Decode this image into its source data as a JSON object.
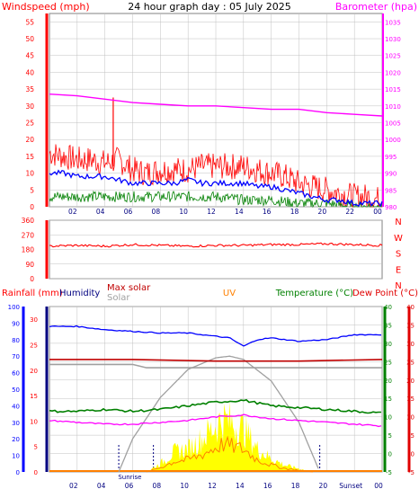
{
  "title": "24 hour graph day : 05 July 2025",
  "colors": {
    "wind": "#ff0000",
    "gust": "#ff0000",
    "avgwind": "#0000ff",
    "green": "#008000",
    "baro": "#ff00ff",
    "dir": "#ff0000",
    "grid": "#c0c0c0",
    "rain": "#0000ff",
    "humidity": "#000080",
    "maxsolar": "#c00000",
    "solar": "#a0a0a0",
    "uv": "#ff8000",
    "temp": "#008000",
    "dew": "#e00000",
    "yellow": "#ffff00"
  },
  "chart_data": [
    {
      "type": "line",
      "title": "",
      "left_label": "Windspeed (mph)",
      "right_label": "Barometer (hpa)",
      "x_ticks": [
        "02",
        "04",
        "06",
        "08",
        "10",
        "12",
        "14",
        "16",
        "18",
        "20",
        "22",
        "00"
      ],
      "y_left_ticks": [
        "0",
        "5",
        "10",
        "15",
        "20",
        "25",
        "30",
        "35",
        "40",
        "45",
        "50",
        "55"
      ],
      "y_right_ticks": [
        "980",
        "985",
        "990",
        "995",
        "1000",
        "1005",
        "1010",
        "1015",
        "1020",
        "1025",
        "1030",
        "1035"
      ],
      "ylim_left": [
        0,
        57.5
      ],
      "ylim_right": [
        980,
        1037.5
      ],
      "series": [
        {
          "role": "gust",
          "hours": [
            0,
            1,
            2,
            3,
            4,
            5,
            6,
            7,
            8,
            9,
            10,
            11,
            12,
            13,
            14,
            15,
            16,
            17,
            18,
            19,
            20,
            21,
            22,
            23,
            24
          ],
          "values": [
            16,
            15,
            14,
            14,
            13,
            14,
            11,
            10,
            11,
            11,
            11,
            12,
            12,
            12,
            12,
            11,
            10,
            9,
            7,
            6,
            5,
            4,
            3,
            3,
            2
          ]
        },
        {
          "role": "average",
          "hours": [
            0,
            1,
            2,
            3,
            4,
            5,
            6,
            7,
            8,
            9,
            10,
            11,
            12,
            13,
            14,
            15,
            16,
            17,
            18,
            19,
            20,
            21,
            22,
            23,
            24
          ],
          "values": [
            10,
            10,
            9,
            9,
            9,
            8,
            7,
            7,
            7,
            7,
            8,
            7,
            7,
            7,
            7,
            6,
            6,
            5,
            4,
            3,
            2,
            2,
            1,
            1,
            1
          ]
        },
        {
          "role": "green",
          "hours": [
            0,
            2,
            4,
            6,
            8,
            10,
            12,
            14,
            16,
            18,
            20,
            22,
            24
          ],
          "values": [
            3,
            3,
            3,
            3,
            3,
            3,
            3,
            2,
            2,
            1,
            1,
            0,
            0
          ]
        },
        {
          "role": "barometer",
          "hours": [
            0,
            2,
            4,
            6,
            8,
            10,
            12,
            14,
            16,
            18,
            20,
            22,
            24
          ],
          "values": [
            1013.5,
            1013,
            1012,
            1011,
            1010.5,
            1010,
            1010,
            1009.5,
            1009,
            1009,
            1008,
            1007.5,
            1007
          ]
        }
      ]
    },
    {
      "type": "line",
      "title": "",
      "left_ticks": [
        "0",
        "90",
        "180",
        "270",
        "360"
      ],
      "compass_labels": [
        "N",
        "W",
        "S",
        "E",
        "N"
      ],
      "ylim": [
        0,
        360
      ],
      "series": [
        {
          "role": "direction",
          "hours": [
            0,
            2,
            4,
            6,
            8,
            10,
            12,
            14,
            16,
            18,
            20,
            22,
            24
          ],
          "values": [
            200,
            205,
            200,
            210,
            205,
            200,
            205,
            205,
            210,
            210,
            215,
            210,
            205
          ]
        }
      ]
    },
    {
      "type": "line",
      "title": "",
      "labels": {
        "rain": "Rainfall (mm)",
        "humidity": "Humidity",
        "maxsolar": "Max solar",
        "solar": "Solar",
        "uv": "UV",
        "temp": "Temperature (°C)",
        "dew": "Dew Point (°C)"
      },
      "rain_ticks": [
        "0",
        "10",
        "20",
        "30",
        "40",
        "50",
        "60",
        "70",
        "80",
        "90",
        "100"
      ],
      "inner_ticks": [
        "0",
        "5",
        "10",
        "15",
        "20",
        "25",
        "30"
      ],
      "temp_ticks": [
        "-5",
        "0",
        "5",
        "10",
        "15",
        "20",
        "25",
        "30",
        "35",
        "40"
      ],
      "dew_ticks": [
        "-5",
        "0",
        "5",
        "10",
        "15",
        "20",
        "25",
        "30",
        "35",
        "40"
      ],
      "x_ticks": [
        "02",
        "04",
        "06",
        "08",
        "10",
        "12",
        "14",
        "16",
        "18",
        "20",
        "Sunset",
        "00"
      ],
      "sunrise_label": "Sunrise",
      "ylim_temp": [
        -5,
        40
      ],
      "series": [
        {
          "role": "humidity",
          "hours": [
            0,
            2,
            4,
            6,
            8,
            10,
            12,
            13,
            14,
            15,
            16,
            17,
            18,
            20,
            22,
            24
          ],
          "values": [
            88,
            88,
            86,
            85,
            84,
            84,
            82,
            81,
            76,
            80,
            81,
            80,
            79,
            80,
            83,
            83
          ]
        },
        {
          "role": "maxsolar",
          "hours": [
            0,
            6,
            12,
            18,
            24
          ],
          "values": [
            68,
            68,
            67,
            67,
            68
          ]
        },
        {
          "role": "solar_level",
          "hours": [
            0,
            6,
            7,
            12,
            18,
            24
          ],
          "values": [
            65,
            65,
            63,
            63,
            63,
            63
          ]
        },
        {
          "role": "temperature",
          "hours": [
            0,
            2,
            4,
            6,
            8,
            10,
            12,
            14,
            16,
            18,
            20,
            22,
            24
          ],
          "values": [
            11.5,
            11.5,
            12,
            11.5,
            12,
            13,
            14,
            14.5,
            13,
            12.5,
            12,
            11.5,
            11
          ]
        },
        {
          "role": "dewpoint",
          "hours": [
            0,
            2,
            4,
            6,
            8,
            10,
            12,
            14,
            16,
            18,
            20,
            22,
            24
          ],
          "values": [
            9,
            8.5,
            8,
            8,
            8.5,
            9,
            10,
            10.5,
            9.5,
            9,
            8.5,
            8,
            7.5
          ]
        },
        {
          "role": "solar_curve",
          "hours": [
            5,
            6,
            8,
            10,
            12,
            13,
            14,
            16,
            18,
            19.5
          ],
          "values": [
            0,
            20,
            45,
            62,
            69,
            70,
            68,
            55,
            30,
            0
          ]
        },
        {
          "role": "uv_area",
          "hours": [
            7,
            8,
            9,
            10,
            11,
            12,
            12.5,
            13,
            14,
            15,
            16,
            17,
            18,
            19
          ],
          "values": [
            0,
            5,
            12,
            14,
            20,
            28,
            32,
            30,
            26,
            14,
            8,
            4,
            2,
            0
          ]
        }
      ]
    }
  ]
}
